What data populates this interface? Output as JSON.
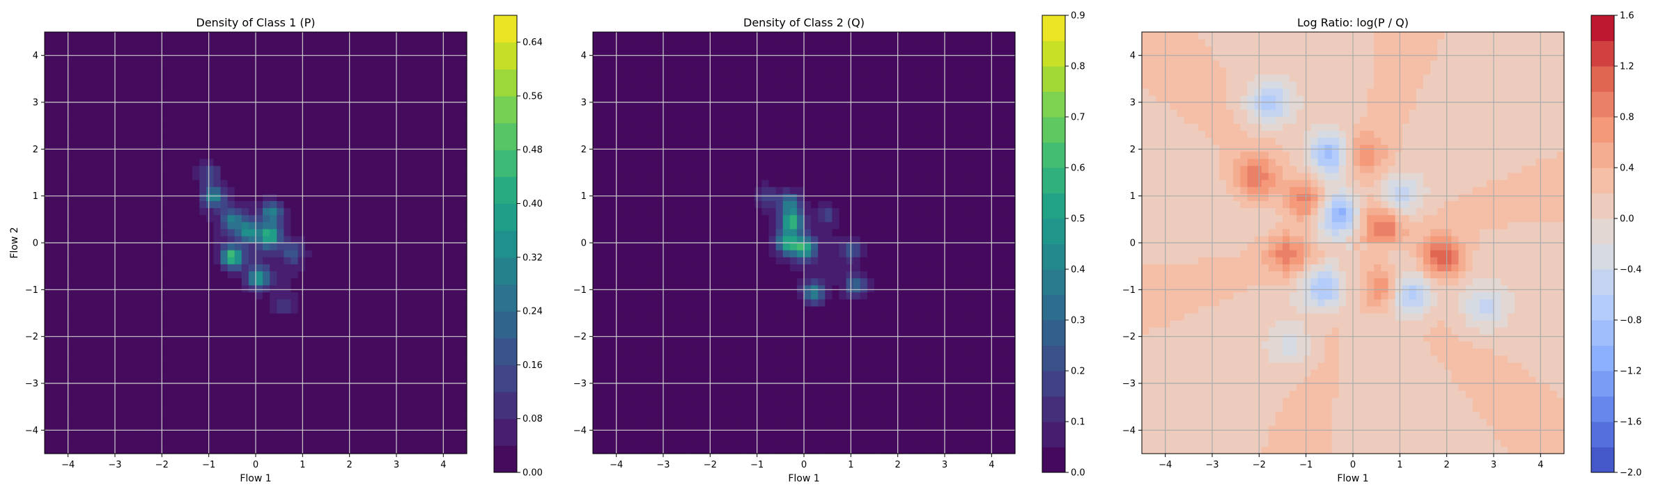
{
  "chart_data": [
    {
      "type": "heatmap",
      "subtype": "filled-contour",
      "title": "Density of Class 1 (P)",
      "xlabel": "Flow 1",
      "ylabel": "Flow 2",
      "xlim": [
        -4.5,
        4.5
      ],
      "ylim": [
        -4.5,
        4.5
      ],
      "xticks": [
        -4,
        -3,
        -2,
        -1,
        0,
        1,
        2,
        3,
        4
      ],
      "yticks": [
        -4,
        -3,
        -2,
        -1,
        0,
        1,
        2,
        3,
        4
      ],
      "grid": true,
      "colormap": "viridis",
      "colorbar": {
        "range": [
          0.0,
          0.68
        ],
        "ticks": [
          "0.00",
          "0.08",
          "0.16",
          "0.24",
          "0.32",
          "0.40",
          "0.48",
          "0.56",
          "0.64"
        ],
        "levels": 17
      },
      "blobs": [
        {
          "x": -0.9,
          "y": 1.0,
          "peak": 0.3
        },
        {
          "x": -0.5,
          "y": 0.5,
          "peak": 0.25
        },
        {
          "x": -0.15,
          "y": 0.25,
          "peak": 0.3
        },
        {
          "x": 0.35,
          "y": 0.65,
          "peak": 0.28
        },
        {
          "x": 0.3,
          "y": 0.15,
          "peak": 0.4
        },
        {
          "x": -0.5,
          "y": -0.3,
          "peak": 0.45
        },
        {
          "x": 0.05,
          "y": -0.75,
          "peak": 0.35
        },
        {
          "x": -1.0,
          "y": 1.5,
          "peak": 0.15
        },
        {
          "x": 0.8,
          "y": -0.2,
          "peak": 0.15
        },
        {
          "x": 0.6,
          "y": -1.3,
          "peak": 0.1
        }
      ]
    },
    {
      "type": "heatmap",
      "subtype": "filled-contour",
      "title": "Density of Class 2 (Q)",
      "xlabel": "Flow 1",
      "ylabel": "",
      "xlim": [
        -4.5,
        4.5
      ],
      "ylim": [
        -4.5,
        4.5
      ],
      "xticks": [
        -4,
        -3,
        -2,
        -1,
        0,
        1,
        2,
        3,
        4
      ],
      "yticks": [
        -4,
        -3,
        -2,
        -1,
        0,
        1,
        2,
        3,
        4
      ],
      "grid": true,
      "colormap": "viridis",
      "colorbar": {
        "range": [
          0.0,
          0.9
        ],
        "ticks": [
          "0.0",
          "0.1",
          "0.2",
          "0.3",
          "0.4",
          "0.5",
          "0.6",
          "0.7",
          "0.8",
          "0.9"
        ],
        "levels": 18
      },
      "blobs": [
        {
          "x": -0.3,
          "y": 0.85,
          "peak": 0.35
        },
        {
          "x": -0.25,
          "y": 0.45,
          "peak": 0.55
        },
        {
          "x": -0.35,
          "y": 0.0,
          "peak": 0.5
        },
        {
          "x": 0.0,
          "y": -0.1,
          "peak": 0.5
        },
        {
          "x": 0.2,
          "y": -1.05,
          "peak": 0.4
        },
        {
          "x": 1.1,
          "y": -0.9,
          "peak": 0.3
        },
        {
          "x": 1.0,
          "y": -0.15,
          "peak": 0.2
        },
        {
          "x": -0.8,
          "y": 1.0,
          "peak": 0.15
        },
        {
          "x": 0.5,
          "y": 0.6,
          "peak": 0.15
        }
      ]
    },
    {
      "type": "heatmap",
      "subtype": "filled-contour",
      "title": "Log Ratio: log(P / Q)",
      "xlabel": "Flow 1",
      "ylabel": "",
      "xlim": [
        -4.5,
        4.5
      ],
      "ylim": [
        -4.5,
        4.5
      ],
      "xticks": [
        -4,
        -3,
        -2,
        -1,
        0,
        1,
        2,
        3,
        4
      ],
      "yticks": [
        -4,
        -3,
        -2,
        -1,
        0,
        1,
        2,
        3,
        4
      ],
      "grid": true,
      "colormap": "coolwarm",
      "colorbar": {
        "range": [
          -2.0,
          1.6
        ],
        "ticks": [
          "−2.0",
          "−1.6",
          "−1.2",
          "−0.8",
          "−0.4",
          "0.0",
          "0.4",
          "0.8",
          "1.2",
          "1.6"
        ],
        "levels": 18
      },
      "blobs": [
        {
          "x": -2.1,
          "y": 1.4,
          "value": 0.8
        },
        {
          "x": 1.9,
          "y": -0.3,
          "value": 1.1
        },
        {
          "x": 0.6,
          "y": 0.4,
          "value": 0.9
        },
        {
          "x": -1.0,
          "y": 0.9,
          "value": 0.7
        },
        {
          "x": -1.4,
          "y": -0.2,
          "value": 0.7
        },
        {
          "x": 0.2,
          "y": 1.9,
          "value": 0.6
        },
        {
          "x": 0.6,
          "y": -1.0,
          "value": 0.7
        },
        {
          "x": -0.5,
          "y": 1.9,
          "value": -1.0
        },
        {
          "x": -0.3,
          "y": 0.6,
          "value": -1.2
        },
        {
          "x": -1.8,
          "y": 3.0,
          "value": -0.9
        },
        {
          "x": 1.2,
          "y": -1.1,
          "value": -1.0
        },
        {
          "x": -0.6,
          "y": -1.0,
          "value": -0.9
        },
        {
          "x": 1.0,
          "y": 1.0,
          "value": -0.6
        },
        {
          "x": 2.8,
          "y": -1.4,
          "value": -0.6
        },
        {
          "x": -1.3,
          "y": -2.2,
          "value": -0.4
        }
      ]
    }
  ]
}
